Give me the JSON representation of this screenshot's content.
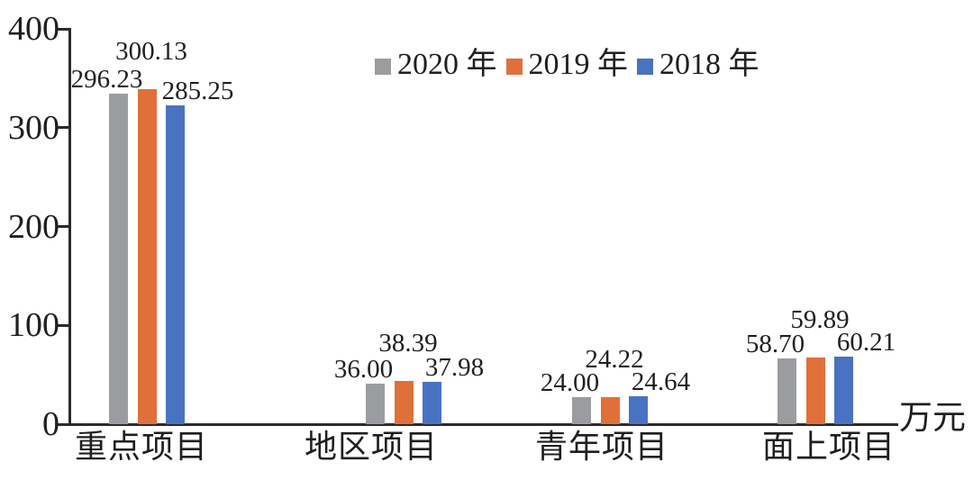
{
  "chart_data": {
    "type": "bar",
    "title": "",
    "categories": [
      "重点项目",
      "地区项目",
      "青年项目",
      "面上项目"
    ],
    "series": [
      {
        "name": "2020 年",
        "color": "#9b9c9f",
        "values": [
          296.23,
          36.0,
          24.0,
          58.7
        ]
      },
      {
        "name": "2019 年",
        "color": "#e0703a",
        "values": [
          300.13,
          38.39,
          24.22,
          59.89
        ]
      },
      {
        "name": "2018 年",
        "color": "#4a72c2",
        "values": [
          285.25,
          37.98,
          24.64,
          60.21
        ]
      }
    ],
    "y_ticks": [
      0,
      100,
      200,
      300,
      400
    ],
    "ylim": [
      0,
      400
    ],
    "xlabel": "",
    "ylabel": "",
    "unit_label": "万元",
    "value_label_decimals": 2,
    "legend_position": "top-center",
    "grid": false,
    "axis_color": "#2b2b2b",
    "text_color": "#1f1f1f"
  }
}
